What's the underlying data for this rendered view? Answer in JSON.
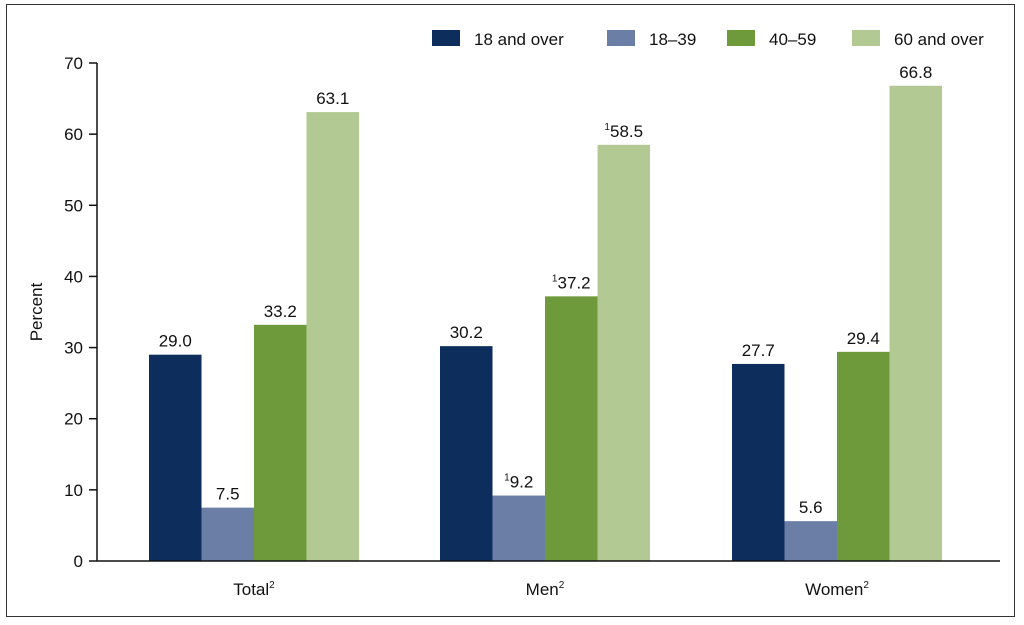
{
  "chart_data": {
    "type": "bar",
    "title": "",
    "xlabel": "",
    "ylabel": "Percent",
    "ylim": [
      0,
      70
    ],
    "yticks": [
      0,
      10,
      20,
      30,
      40,
      50,
      60,
      70
    ],
    "grid": false,
    "legend_position": "top-right",
    "categories": [
      {
        "label": "Total",
        "sup": "2"
      },
      {
        "label": "Men",
        "sup": "2"
      },
      {
        "label": "Women",
        "sup": "2"
      }
    ],
    "series": [
      {
        "name": "18 and over",
        "color": "#0d2d5c",
        "values": [
          29.0,
          30.2,
          27.7
        ],
        "labels": [
          "29.0",
          "30.2",
          "27.7"
        ],
        "label_sups": [
          "",
          "",
          ""
        ]
      },
      {
        "name": "18–39",
        "color": "#6b7fa6",
        "values": [
          7.5,
          9.2,
          5.6
        ],
        "labels": [
          "7.5",
          "9.2",
          "5.6"
        ],
        "label_sups": [
          "",
          "1",
          ""
        ]
      },
      {
        "name": "40–59",
        "color": "#6f9a3c",
        "values": [
          33.2,
          37.2,
          29.4
        ],
        "labels": [
          "33.2",
          "37.2",
          "29.4"
        ],
        "label_sups": [
          "",
          "1",
          ""
        ]
      },
      {
        "name": "60 and over",
        "color": "#b3c993",
        "values": [
          63.1,
          58.5,
          66.8
        ],
        "labels": [
          "63.1",
          "58.5",
          "66.8"
        ],
        "label_sups": [
          "",
          "1",
          ""
        ]
      }
    ]
  }
}
